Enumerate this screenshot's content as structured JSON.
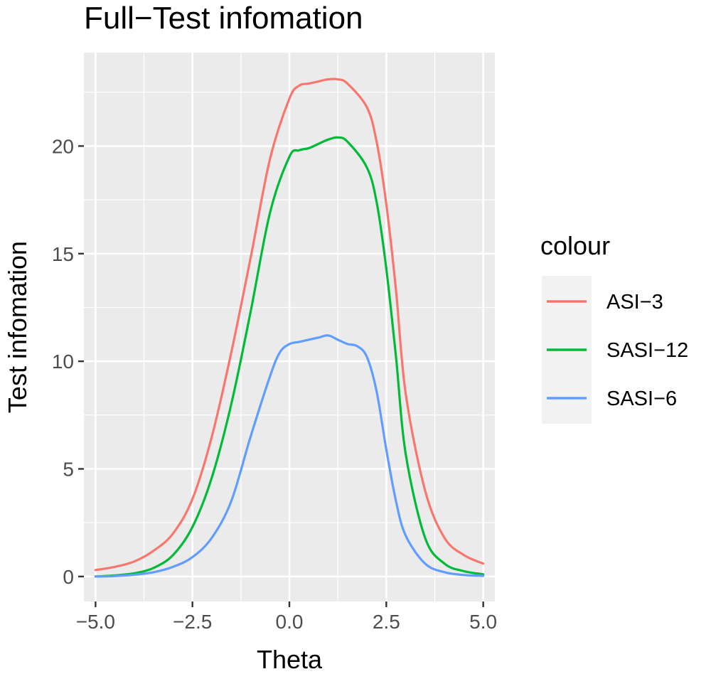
{
  "colors": {
    "panel_bg": "#ebebeb",
    "grid": "#ffffff",
    "tick": "#333333",
    "legend_bg": "#f2f2f2"
  },
  "chart_data": {
    "type": "line",
    "title": "Full−Test infomation",
    "xlabel": "Theta",
    "ylabel": "Test infomation",
    "xlim": [
      -5.3,
      5.3
    ],
    "ylim": [
      -1.16,
      24.34
    ],
    "x_ticks": [
      -5.0,
      -2.5,
      0.0,
      2.5,
      5.0
    ],
    "x_tick_labels": [
      "−5.0",
      "−2.5",
      "0.0",
      "2.5",
      "5.0"
    ],
    "y_ticks": [
      0,
      5,
      10,
      15,
      20
    ],
    "y_tick_labels": [
      "0",
      "5",
      "10",
      "15",
      "20"
    ],
    "grid": true,
    "legend": {
      "title": "colour",
      "position": "right",
      "entries": [
        "ASI−3",
        "SASI−12",
        "SASI−6"
      ]
    },
    "series": [
      {
        "name": "ASI−3",
        "color": "#f8766d",
        "x": [
          -5.0,
          -4.5,
          -4.0,
          -3.5,
          -3.0,
          -2.5,
          -2.0,
          -1.5,
          -1.0,
          -0.5,
          0.0,
          0.25,
          0.5,
          0.75,
          1.0,
          1.25,
          1.5,
          2.0,
          2.25,
          2.5,
          2.75,
          3.0,
          3.5,
          4.0,
          4.5,
          5.0
        ],
        "y": [
          0.3,
          0.45,
          0.7,
          1.2,
          2.0,
          3.6,
          6.5,
          10.4,
          14.8,
          19.4,
          22.2,
          22.8,
          22.9,
          23.0,
          23.1,
          23.1,
          22.9,
          21.8,
          20.2,
          17.3,
          13.3,
          8.5,
          4.0,
          1.8,
          1.0,
          0.6
        ]
      },
      {
        "name": "SASI−12",
        "color": "#00ba38",
        "x": [
          -5.0,
          -4.5,
          -4.0,
          -3.5,
          -3.0,
          -2.5,
          -2.0,
          -1.5,
          -1.0,
          -0.5,
          0.0,
          0.25,
          0.5,
          0.75,
          1.0,
          1.25,
          1.5,
          2.0,
          2.25,
          2.5,
          2.75,
          3.0,
          3.5,
          4.0,
          4.5,
          5.0
        ],
        "y": [
          0.0,
          0.05,
          0.15,
          0.4,
          1.0,
          2.3,
          4.6,
          8.0,
          12.3,
          16.9,
          19.5,
          19.8,
          19.9,
          20.1,
          20.3,
          20.4,
          20.2,
          19.0,
          17.4,
          14.3,
          10.2,
          5.7,
          1.8,
          0.6,
          0.25,
          0.1
        ]
      },
      {
        "name": "SASI−6",
        "color": "#619cff",
        "x": [
          -5.0,
          -4.5,
          -4.0,
          -3.5,
          -3.0,
          -2.5,
          -2.0,
          -1.5,
          -1.0,
          -0.5,
          -0.25,
          0.0,
          0.25,
          0.5,
          0.75,
          1.0,
          1.25,
          1.5,
          1.75,
          2.0,
          2.25,
          2.5,
          2.75,
          3.0,
          3.5,
          4.0,
          4.5,
          5.0
        ],
        "y": [
          0.0,
          0.02,
          0.08,
          0.2,
          0.45,
          0.9,
          1.8,
          3.5,
          6.5,
          9.3,
          10.4,
          10.8,
          10.9,
          11.0,
          11.1,
          11.2,
          11.0,
          10.8,
          10.7,
          10.2,
          8.6,
          5.9,
          3.5,
          1.9,
          0.6,
          0.2,
          0.07,
          0.03
        ]
      }
    ]
  }
}
